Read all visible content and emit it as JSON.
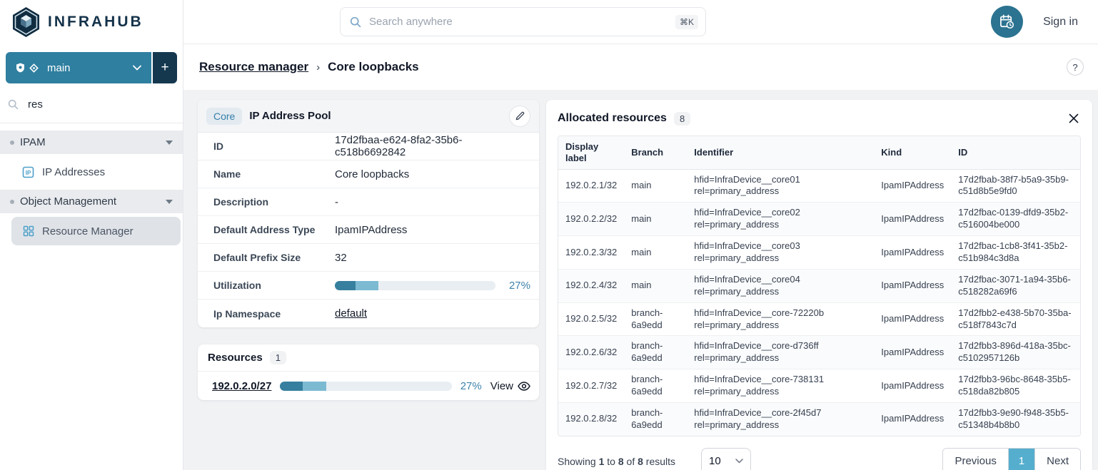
{
  "colors": {
    "brand_navy": "#14324a",
    "branch_teal": "#2f7fa0",
    "add_button_navy": "#15384f",
    "avatar_teal": "#2b7390",
    "active_page_teal": "#55aece",
    "progress_dark": "#377f9e",
    "progress_light": "#7cbad2",
    "percent_blue": "#3d83ac"
  },
  "header": {
    "brand": "INFRAHUB",
    "search_placeholder": "Search anywhere",
    "search_shortcut": "⌘K",
    "sign_in": "Sign in"
  },
  "sidebar": {
    "branch": "main",
    "add_label": "+",
    "filter_value": "res",
    "groups": [
      {
        "label": "IPAM",
        "items": [
          {
            "label": "IP Addresses"
          }
        ]
      },
      {
        "label": "Object Management",
        "items": [
          {
            "label": "Resource Manager"
          }
        ]
      }
    ]
  },
  "breadcrumb": {
    "parent": "Resource manager",
    "separator": "›",
    "current": "Core loopbacks",
    "help": "?"
  },
  "pool_card": {
    "badge": "Core",
    "title": "IP Address Pool",
    "fields": [
      {
        "label": "ID",
        "value": "17d2fbaa-e624-8fa2-35b6-c518b6692842"
      },
      {
        "label": "Name",
        "value": "Core loopbacks"
      },
      {
        "label": "Description",
        "value": "-"
      },
      {
        "label": "Default Address Type",
        "value": "IpamIPAddress"
      },
      {
        "label": "Default Prefix Size",
        "value": "32"
      }
    ],
    "utilization": {
      "label": "Utilization",
      "dark": 13,
      "total": 27,
      "display": "27%"
    },
    "namespace": {
      "label": "Ip Namespace",
      "value": "default"
    }
  },
  "resources_card": {
    "title": "Resources",
    "count": "1",
    "row": {
      "prefix": "192.0.2.0/27",
      "progress": {
        "dark": 13,
        "total": 27
      },
      "display": "27%",
      "view_label": "View"
    }
  },
  "allocated": {
    "title": "Allocated resources",
    "count": "8",
    "columns": [
      "Display label",
      "Branch",
      "Identifier",
      "Kind",
      "ID"
    ],
    "rows": [
      {
        "display": "192.0.2.1/32",
        "branch": "main",
        "identifier": "hfid=InfraDevice__core01 rel=primary_address",
        "kind": "IpamIPAddress",
        "id": "17d2fbab-38f7-b5a9-35b9-c51d8b5e9fd0"
      },
      {
        "display": "192.0.2.2/32",
        "branch": "main",
        "identifier": "hfid=InfraDevice__core02 rel=primary_address",
        "kind": "IpamIPAddress",
        "id": "17d2fbac-0139-dfd9-35b2-c516004be000"
      },
      {
        "display": "192.0.2.3/32",
        "branch": "main",
        "identifier": "hfid=InfraDevice__core03 rel=primary_address",
        "kind": "IpamIPAddress",
        "id": "17d2fbac-1cb8-3f41-35b2-c51b984c3d8a"
      },
      {
        "display": "192.0.2.4/32",
        "branch": "main",
        "identifier": "hfid=InfraDevice__core04 rel=primary_address",
        "kind": "IpamIPAddress",
        "id": "17d2fbac-3071-1a94-35b6-c518282a69f6"
      },
      {
        "display": "192.0.2.5/32",
        "branch": "branch-6a9edd",
        "identifier": "hfid=InfraDevice__core-72220b rel=primary_address",
        "kind": "IpamIPAddress",
        "id": "17d2fbb2-e438-5b70-35ba-c518f7843c7d"
      },
      {
        "display": "192.0.2.6/32",
        "branch": "branch-6a9edd",
        "identifier": "hfid=InfraDevice__core-d736ff rel=primary_address",
        "kind": "IpamIPAddress",
        "id": "17d2fbb3-896d-418a-35bc-c5102957126b"
      },
      {
        "display": "192.0.2.7/32",
        "branch": "branch-6a9edd",
        "identifier": "hfid=InfraDevice__core-738131 rel=primary_address",
        "kind": "IpamIPAddress",
        "id": "17d2fbb3-96bc-8648-35b5-c518da82b805"
      },
      {
        "display": "192.0.2.8/32",
        "branch": "branch-6a9edd",
        "identifier": "hfid=InfraDevice__core-2f45d7 rel=primary_address",
        "kind": "IpamIPAddress",
        "id": "17d2fbb3-9e90-f948-35b5-c51348b4b8b0"
      }
    ],
    "footer": {
      "showing": [
        "Showing ",
        "1",
        " to ",
        "8",
        " of ",
        "8",
        " results"
      ],
      "page_size": "10",
      "previous": "Previous",
      "page": "1",
      "next": "Next"
    }
  }
}
